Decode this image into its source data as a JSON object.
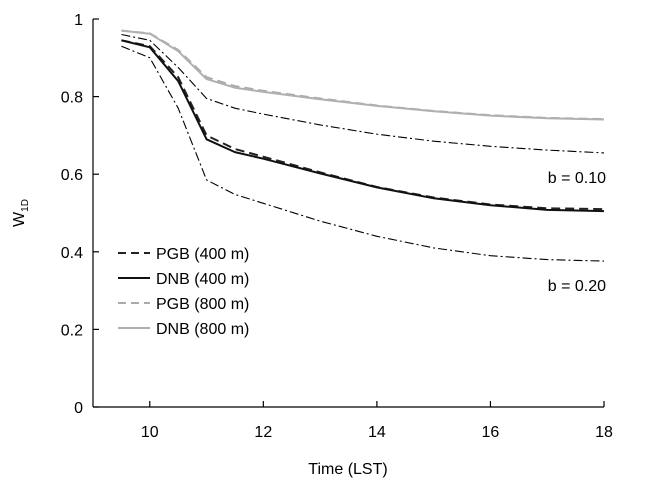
{
  "chart_data": {
    "type": "line",
    "title": "",
    "xlabel": "Time (LST)",
    "ylabel_main": "W",
    "ylabel_sub": "1D",
    "xlim": [
      9,
      18
    ],
    "ylim": [
      0,
      1
    ],
    "xticks": [
      10,
      12,
      14,
      16,
      18
    ],
    "yticks": [
      0,
      0.2,
      0.4,
      0.6,
      0.8,
      1
    ],
    "ytick_labels": [
      "0",
      "0.2",
      "0.4",
      "0.6",
      "0.8",
      "1"
    ],
    "grid": false,
    "legend_position": "bottom-left",
    "series": [
      {
        "name": "PGB (400 m)",
        "style": "dashed",
        "color": "#222222",
        "x": [
          9.5,
          10,
          10.5,
          11,
          11.5,
          12,
          13,
          14,
          15,
          16,
          17,
          18
        ],
        "y": [
          0.945,
          0.93,
          0.85,
          0.7,
          0.665,
          0.645,
          0.605,
          0.567,
          0.54,
          0.522,
          0.512,
          0.51
        ]
      },
      {
        "name": "DNB (400 m)",
        "style": "solid",
        "color": "#111111",
        "x": [
          9.5,
          10,
          10.5,
          11,
          11.5,
          12,
          13,
          14,
          15,
          16,
          17,
          18
        ],
        "y": [
          0.945,
          0.927,
          0.84,
          0.69,
          0.657,
          0.64,
          0.602,
          0.566,
          0.538,
          0.52,
          0.508,
          0.505
        ]
      },
      {
        "name": "PGB (800 m)",
        "style": "dashed",
        "color": "#aaaaaa",
        "x": [
          9.5,
          10,
          10.5,
          11,
          11.5,
          12,
          13,
          14,
          15,
          16,
          17,
          18
        ],
        "y": [
          0.97,
          0.963,
          0.92,
          0.85,
          0.827,
          0.815,
          0.795,
          0.777,
          0.763,
          0.752,
          0.745,
          0.742
        ]
      },
      {
        "name": "DNB (800 m)",
        "style": "solid",
        "color": "#b0b0b0",
        "x": [
          9.5,
          10,
          10.5,
          11,
          11.5,
          12,
          13,
          14,
          15,
          16,
          17,
          18
        ],
        "y": [
          0.97,
          0.962,
          0.917,
          0.845,
          0.823,
          0.812,
          0.793,
          0.776,
          0.762,
          0.751,
          0.744,
          0.741
        ]
      },
      {
        "name": "",
        "style": "dashdot",
        "color": "#000000",
        "x": [
          9.5,
          10,
          10.5,
          11,
          11.5,
          12,
          13,
          14,
          15,
          16,
          17,
          18
        ],
        "y": [
          0.96,
          0.945,
          0.875,
          0.795,
          0.77,
          0.755,
          0.727,
          0.703,
          0.685,
          0.672,
          0.662,
          0.655
        ]
      },
      {
        "name": "",
        "style": "dashdot",
        "color": "#000000",
        "x": [
          9.5,
          10,
          10.5,
          11,
          11.5,
          12,
          13,
          14,
          15,
          16,
          17,
          18
        ],
        "y": [
          0.93,
          0.9,
          0.77,
          0.585,
          0.548,
          0.525,
          0.479,
          0.44,
          0.41,
          0.39,
          0.38,
          0.376
        ]
      }
    ],
    "annotations": [
      {
        "text": "b = 0.10",
        "x": 18,
        "y": 0.655
      },
      {
        "text": "b = 0.20",
        "x": 18,
        "y": 0.376
      }
    ]
  }
}
